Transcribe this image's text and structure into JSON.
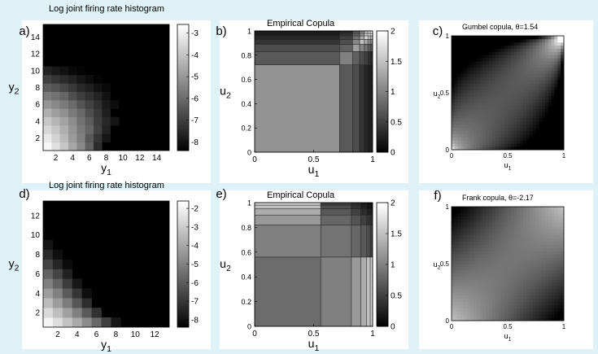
{
  "chart_data": [
    {
      "panel": "a)",
      "type": "heatmap",
      "title": "Log joint firing rate histogram",
      "xlabel": "y",
      "xlabel_sub": "1",
      "ylabel": "y",
      "ylabel_sub": "2",
      "xticks": [
        "2",
        "4",
        "6",
        "8",
        "10",
        "12",
        "14"
      ],
      "yticks": [
        "2",
        "4",
        "6",
        "8",
        "10",
        "12",
        "14"
      ],
      "xlim": [
        0.5,
        15.5
      ],
      "ylim": [
        0.5,
        15.5
      ],
      "colorbar": {
        "min": -8.4,
        "max": -2.6,
        "ticks": [
          "-3",
          "-4",
          "-5",
          "-6",
          "-7",
          "-8"
        ]
      },
      "cell_values": [
        {
          "y": 1,
          "values": [
            -2.8,
            -3.3,
            -3.9,
            -4.6,
            -5.3,
            -6.2,
            -7.4
          ]
        },
        {
          "y": 2,
          "values": [
            -3.1,
            -3.6,
            -4.2,
            -4.9,
            -5.5,
            -6.4,
            -7.2,
            -7.9
          ]
        },
        {
          "y": 3,
          "values": [
            -3.5,
            -3.9,
            -4.4,
            -5.0,
            -5.6,
            -6.1,
            -6.9,
            -7.6
          ]
        },
        {
          "y": 4,
          "values": [
            -3.9,
            -4.3,
            -4.7,
            -5.2,
            -5.8,
            -6.3,
            -7.0,
            -7.5,
            -7.9
          ]
        },
        {
          "y": 5,
          "values": [
            -4.4,
            -4.8,
            -5.1,
            -5.6,
            -6.0,
            -6.6,
            -7.1,
            -7.7
          ]
        },
        {
          "y": 6,
          "values": [
            -5.0,
            -5.3,
            -5.6,
            -6.0,
            -6.5,
            -6.9,
            -7.3,
            -7.8,
            -8.1
          ]
        },
        {
          "y": 7,
          "values": [
            -5.6,
            -5.8,
            -6.1,
            -6.6,
            -7.0,
            -7.3,
            -7.6,
            -8.0
          ]
        },
        {
          "y": 8,
          "values": [
            -6.3,
            -6.5,
            -6.8,
            -7.1,
            -7.5,
            -7.7,
            -8.0,
            -8.2
          ]
        },
        {
          "y": 9,
          "values": [
            -7.0,
            -7.2,
            -7.4,
            -7.6,
            -7.9,
            -8.1,
            -8.3
          ]
        },
        {
          "y": 10,
          "values": [
            -7.6,
            -7.8,
            -8.0,
            -8.2,
            -8.3
          ]
        }
      ]
    },
    {
      "panel": "b)",
      "type": "heatmap",
      "title": "Empirical Copula",
      "xlabel": "u",
      "xlabel_sub": "1",
      "ylabel": "u",
      "ylabel_sub": "2",
      "xticks": [
        "0",
        "0.5",
        "1"
      ],
      "yticks": [
        "0",
        "0.2",
        "0.4",
        "0.6",
        "0.8",
        "1"
      ],
      "xlim": [
        0,
        1
      ],
      "ylim": [
        0,
        1
      ],
      "colorbar": {
        "min": 0,
        "max": 2,
        "ticks": [
          "2",
          "1.5",
          "1",
          "0.5",
          "0"
        ]
      },
      "u_breaks": [
        0,
        0.72,
        0.83,
        0.89,
        0.93,
        0.96,
        0.98,
        1.0
      ],
      "density": [
        [
          1.15,
          0.7,
          0.6,
          0.4,
          0.3,
          0.2,
          0.2
        ],
        [
          0.7,
          1.0,
          0.75,
          0.6,
          0.5,
          0.4,
          0.3
        ],
        [
          0.6,
          0.75,
          1.25,
          1.05,
          0.9,
          0.8,
          0.7
        ],
        [
          0.4,
          0.6,
          1.05,
          1.5,
          1.3,
          1.2,
          1.1
        ],
        [
          0.3,
          0.5,
          0.9,
          1.3,
          1.7,
          1.6,
          1.5
        ],
        [
          0.2,
          0.4,
          0.8,
          1.2,
          1.6,
          1.95,
          1.85
        ],
        [
          0.2,
          0.3,
          0.7,
          1.1,
          1.5,
          1.85,
          2.0
        ]
      ]
    },
    {
      "panel": "c)",
      "type": "heatmap",
      "title": "Gumbel copula, θ=1.54",
      "family": "gumbel",
      "theta": 1.54,
      "xlabel": "u",
      "xlabel_sub": "1",
      "ylabel": "u",
      "ylabel_sub": "2",
      "xticks": [
        "0",
        "0.5",
        "1"
      ],
      "yticks": [
        "0",
        "0.5",
        "1"
      ],
      "xlim": [
        0,
        1
      ],
      "ylim": [
        0,
        1
      ]
    },
    {
      "panel": "d)",
      "type": "heatmap",
      "title": "Log joint firing rate histogram",
      "xlabel": "y",
      "xlabel_sub": "1",
      "ylabel": "y",
      "ylabel_sub": "2",
      "xticks": [
        "2",
        "4",
        "6",
        "8",
        "10",
        "12"
      ],
      "yticks": [
        "2",
        "4",
        "6",
        "8",
        "10",
        "12"
      ],
      "xlim": [
        0.5,
        13.5
      ],
      "ylim": [
        0.5,
        13.5
      ],
      "colorbar": {
        "min": -8.4,
        "max": -1.6,
        "ticks": [
          "-2",
          "-3",
          "-4",
          "-5",
          "-6",
          "-7",
          "-8"
        ]
      },
      "cell_values": [
        {
          "y": 1,
          "values": [
            -1.9,
            -2.5,
            -3.2,
            -3.9,
            -4.7,
            -5.6,
            -6.7,
            -7.8
          ]
        },
        {
          "y": 2,
          "values": [
            -2.6,
            -3.3,
            -4.1,
            -5.0,
            -6.0,
            -7.1
          ]
        },
        {
          "y": 3,
          "values": [
            -3.4,
            -4.2,
            -5.1,
            -6.1,
            -7.2
          ]
        },
        {
          "y": 4,
          "values": [
            -4.2,
            -5.0,
            -6.0,
            -7.0,
            -8.0
          ]
        },
        {
          "y": 5,
          "values": [
            -5.0,
            -5.8,
            -6.8,
            -7.8
          ]
        },
        {
          "y": 6,
          "values": [
            -5.8,
            -6.6,
            -7.5
          ]
        },
        {
          "y": 7,
          "values": [
            -6.6,
            -7.4,
            -8.1
          ]
        },
        {
          "y": 8,
          "values": [
            -7.3,
            -8.0
          ]
        },
        {
          "y": 9,
          "values": [
            -7.9
          ]
        }
      ]
    },
    {
      "panel": "e)",
      "type": "heatmap",
      "title": "Empirical Copula",
      "xlabel": "u",
      "xlabel_sub": "1",
      "ylabel": "u",
      "ylabel_sub": "2",
      "xticks": [
        "0",
        "0.5",
        "1"
      ],
      "yticks": [
        "0",
        "0.2",
        "0.4",
        "0.6",
        "0.8",
        "1"
      ],
      "xlim": [
        0,
        1
      ],
      "ylim": [
        0,
        1
      ],
      "colorbar": {
        "min": 0,
        "max": 2,
        "ticks": [
          "2",
          "1.5",
          "1",
          "0.5",
          "0"
        ]
      },
      "u_breaks": [
        0,
        0.56,
        0.82,
        0.9,
        0.95,
        0.98,
        1.0
      ],
      "density": [
        [
          0.85,
          1.0,
          1.2,
          1.35,
          1.5,
          1.65
        ],
        [
          1.0,
          0.9,
          0.8,
          0.7,
          0.6,
          0.5
        ],
        [
          1.2,
          0.8,
          0.65,
          0.5,
          0.4,
          0.35
        ],
        [
          1.35,
          0.7,
          0.5,
          0.35,
          0.25,
          0.2
        ],
        [
          1.5,
          0.6,
          0.4,
          0.25,
          0.15,
          0.1
        ],
        [
          1.65,
          0.5,
          0.35,
          0.2,
          0.1,
          0.05
        ]
      ]
    },
    {
      "panel": "f)",
      "type": "heatmap",
      "title": "Frank copula, θ=-2.17",
      "family": "frank",
      "theta": -2.17,
      "xlabel": "u",
      "xlabel_sub": "1",
      "ylabel": "u",
      "ylabel_sub": "2",
      "xticks": [
        "0",
        "0.5",
        "1"
      ],
      "yticks": [
        "0",
        "0.5",
        "1"
      ],
      "xlim": [
        0,
        1
      ],
      "ylim": [
        0,
        1
      ]
    }
  ]
}
